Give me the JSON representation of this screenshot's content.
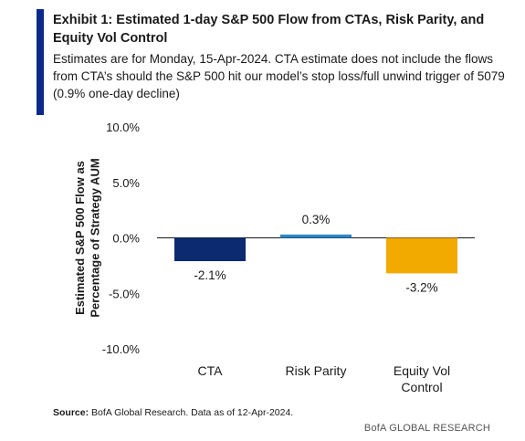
{
  "header": {
    "title": "Exhibit 1: Estimated 1-day S&P 500 Flow from CTAs, Risk Parity, and Equity Vol Control",
    "subtitle": "Estimates are for Monday, 15-Apr-2024.  CTA estimate does not include the flows from CTA’s should the S&P 500 hit our model’s stop loss/full unwind trigger of 5079 (0.9% one-day decline)"
  },
  "chart_data": {
    "type": "bar",
    "categories": [
      "CTA",
      "Risk Parity",
      "Equity Vol Control"
    ],
    "values": [
      -2.1,
      0.3,
      -3.2
    ],
    "data_labels": [
      "-2.1%",
      "0.3%",
      "-3.2%"
    ],
    "ylabel": "Estimated S&P 500 Flow as Percentage of Strategy AUM",
    "ylim": [
      -10,
      10
    ],
    "yticks": [
      10,
      5,
      0,
      -5,
      -10
    ],
    "ytick_labels": [
      "10.0%",
      "5.0%",
      "0.0%",
      "-5.0%",
      "-10.0%"
    ],
    "colors": [
      "#0b2a6f",
      "#2a86c8",
      "#f2a900"
    ],
    "grid": false,
    "legend": "none"
  },
  "footer": {
    "source_label": "Source:",
    "source_text": " BofA Global Research.  Data as of 12-Apr-2024.",
    "brand": "BofA GLOBAL RESEARCH"
  }
}
